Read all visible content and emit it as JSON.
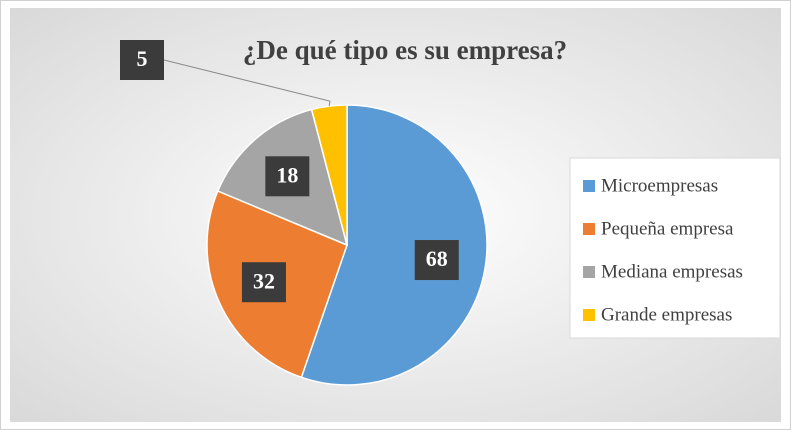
{
  "chart_data": {
    "type": "pie",
    "title": "¿De qué tipo es su empresa?",
    "categories": [
      "Microempresas",
      "Pequeña empresa",
      "Mediana empresas",
      "Grande empresas"
    ],
    "values": [
      68,
      32,
      18,
      5
    ],
    "colors": [
      "#5b9bd5",
      "#ed7d31",
      "#a5a5a5",
      "#ffc000"
    ],
    "legend": "right"
  }
}
